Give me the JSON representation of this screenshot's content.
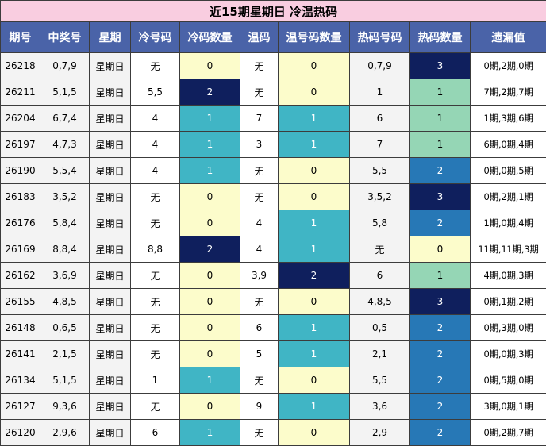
{
  "title": "近15期星期日 冷温热码",
  "headers": [
    "期号",
    "中奖号",
    "星期",
    "冷号码",
    "冷码数量",
    "温码",
    "温号码数量",
    "热码号码",
    "热码数量",
    "遗漏值"
  ],
  "rows": [
    {
      "issue": "26218",
      "numbers": "0,7,9",
      "weekday": "星期日",
      "cold": "无",
      "cold_count": "0",
      "warm": "无",
      "warm_count": "0",
      "hot": "0,7,9",
      "hot_count": "3",
      "miss": "0期,2期,0期"
    },
    {
      "issue": "26211",
      "numbers": "5,1,5",
      "weekday": "星期日",
      "cold": "5,5",
      "cold_count": "2",
      "warm": "无",
      "warm_count": "0",
      "hot": "1",
      "hot_count": "1",
      "miss": "7期,2期,7期"
    },
    {
      "issue": "26204",
      "numbers": "6,7,4",
      "weekday": "星期日",
      "cold": "4",
      "cold_count": "1",
      "warm": "7",
      "warm_count": "1",
      "hot": "6",
      "hot_count": "1",
      "miss": "1期,3期,6期"
    },
    {
      "issue": "26197",
      "numbers": "4,7,3",
      "weekday": "星期日",
      "cold": "4",
      "cold_count": "1",
      "warm": "3",
      "warm_count": "1",
      "hot": "7",
      "hot_count": "1",
      "miss": "6期,0期,4期"
    },
    {
      "issue": "26190",
      "numbers": "5,5,4",
      "weekday": "星期日",
      "cold": "4",
      "cold_count": "1",
      "warm": "无",
      "warm_count": "0",
      "hot": "5,5",
      "hot_count": "2",
      "miss": "0期,0期,5期"
    },
    {
      "issue": "26183",
      "numbers": "3,5,2",
      "weekday": "星期日",
      "cold": "无",
      "cold_count": "0",
      "warm": "无",
      "warm_count": "0",
      "hot": "3,5,2",
      "hot_count": "3",
      "miss": "0期,2期,1期"
    },
    {
      "issue": "26176",
      "numbers": "5,8,4",
      "weekday": "星期日",
      "cold": "无",
      "cold_count": "0",
      "warm": "4",
      "warm_count": "1",
      "hot": "5,8",
      "hot_count": "2",
      "miss": "1期,0期,4期"
    },
    {
      "issue": "26169",
      "numbers": "8,8,4",
      "weekday": "星期日",
      "cold": "8,8",
      "cold_count": "2",
      "warm": "4",
      "warm_count": "1",
      "hot": "无",
      "hot_count": "0",
      "miss": "11期,11期,3期"
    },
    {
      "issue": "26162",
      "numbers": "3,6,9",
      "weekday": "星期日",
      "cold": "无",
      "cold_count": "0",
      "warm": "3,9",
      "warm_count": "2",
      "hot": "6",
      "hot_count": "1",
      "miss": "4期,0期,3期"
    },
    {
      "issue": "26155",
      "numbers": "4,8,5",
      "weekday": "星期日",
      "cold": "无",
      "cold_count": "0",
      "warm": "无",
      "warm_count": "0",
      "hot": "4,8,5",
      "hot_count": "3",
      "miss": "0期,1期,2期"
    },
    {
      "issue": "26148",
      "numbers": "0,6,5",
      "weekday": "星期日",
      "cold": "无",
      "cold_count": "0",
      "warm": "6",
      "warm_count": "1",
      "hot": "0,5",
      "hot_count": "2",
      "miss": "0期,3期,0期"
    },
    {
      "issue": "26141",
      "numbers": "2,1,5",
      "weekday": "星期日",
      "cold": "无",
      "cold_count": "0",
      "warm": "5",
      "warm_count": "1",
      "hot": "2,1",
      "hot_count": "2",
      "miss": "0期,0期,3期"
    },
    {
      "issue": "26134",
      "numbers": "5,1,5",
      "weekday": "星期日",
      "cold": "1",
      "cold_count": "1",
      "warm": "无",
      "warm_count": "0",
      "hot": "5,5",
      "hot_count": "2",
      "miss": "0期,5期,0期"
    },
    {
      "issue": "26127",
      "numbers": "9,3,6",
      "weekday": "星期日",
      "cold": "无",
      "cold_count": "0",
      "warm": "9",
      "warm_count": "1",
      "hot": "3,6",
      "hot_count": "2",
      "miss": "3期,0期,1期"
    },
    {
      "issue": "26120",
      "numbers": "2,9,6",
      "weekday": "星期日",
      "cold": "6",
      "cold_count": "1",
      "warm": "无",
      "warm_count": "0",
      "hot": "2,9",
      "hot_count": "2",
      "miss": "0期,2期,7期"
    }
  ],
  "colors": {
    "title_bg": "#f9cde0",
    "header_bg": "#4a63a8",
    "count_0": "#fcfccb",
    "cold_count_1": "#40b5c5",
    "cold_count_2": "#0f1f5d",
    "hot_count_1": "#95d6b5",
    "hot_count_2": "#2778b6",
    "hot_count_3": "#0f1f5d"
  }
}
